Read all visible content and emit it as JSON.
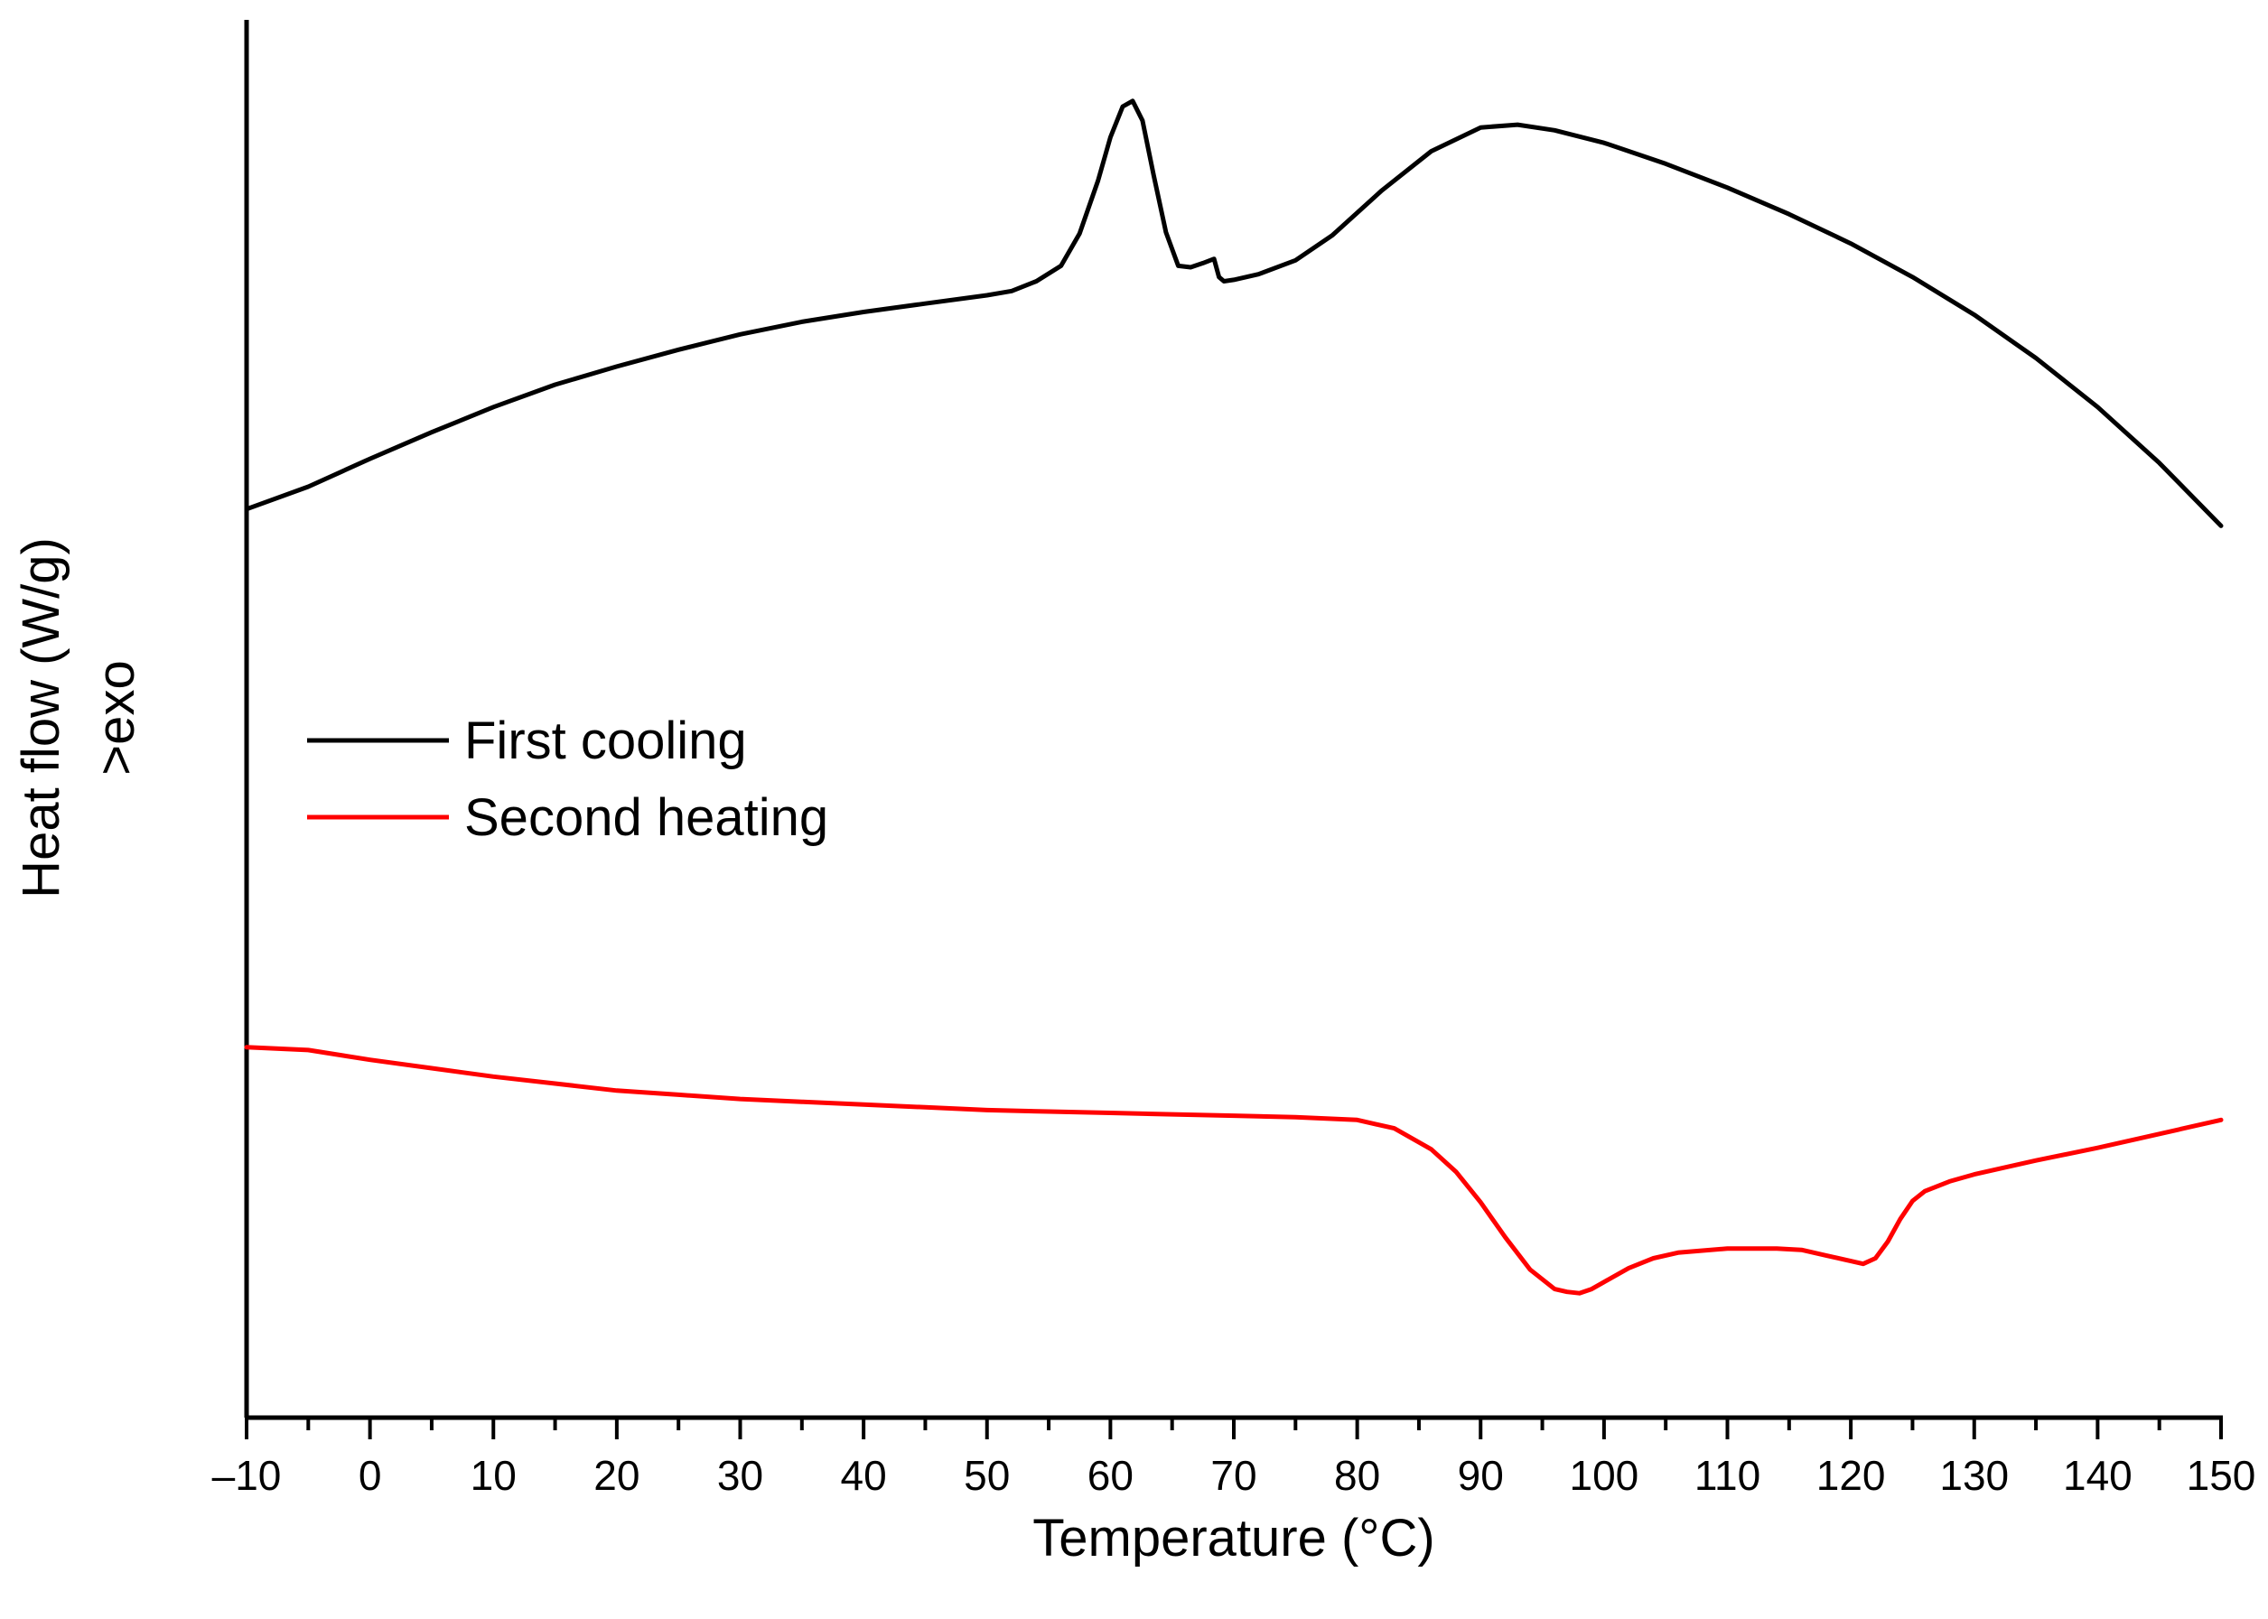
{
  "chart_data": {
    "type": "line",
    "title": "",
    "xlabel": "Temperature (°C)",
    "ylabel": "Heat flow (W/g)",
    "ylabel_note": ">exo",
    "xlim": [
      -10,
      150
    ],
    "ylim": [
      0,
      100
    ],
    "x_ticks": [
      -10,
      0,
      10,
      20,
      30,
      40,
      50,
      60,
      70,
      80,
      90,
      100,
      110,
      120,
      130,
      140,
      150
    ],
    "x_tick_labels": [
      "–10",
      "0",
      "10",
      "20",
      "30",
      "40",
      "50",
      "60",
      "70",
      "80",
      "90",
      "100",
      "110",
      "120",
      "130",
      "140",
      "150"
    ],
    "y_ticks_visible": false,
    "grid": false,
    "legend_position": "center-left",
    "series": [
      {
        "name": "First cooling",
        "color": "#000000",
        "x": [
          -10,
          -5,
          0,
          5,
          10,
          15,
          20,
          25,
          30,
          35,
          40,
          45,
          50,
          52,
          54,
          56,
          57.5,
          59,
          60,
          61,
          61.8,
          62.6,
          63.5,
          64.5,
          65.5,
          66.5,
          67.5,
          68.4,
          68.8,
          69.2,
          70,
          72,
          75,
          78,
          82,
          86,
          90,
          93,
          96,
          100,
          105,
          110,
          115,
          120,
          125,
          130,
          135,
          140,
          145,
          150
        ],
        "y": [
          65.0,
          66.6,
          68.6,
          70.5,
          72.3,
          73.9,
          75.2,
          76.4,
          77.5,
          78.4,
          79.1,
          79.7,
          80.3,
          80.6,
          81.3,
          82.4,
          84.7,
          88.5,
          91.6,
          93.8,
          94.2,
          92.8,
          88.9,
          84.8,
          82.4,
          82.3,
          82.6,
          82.9,
          81.6,
          81.3,
          81.4,
          81.8,
          82.8,
          84.6,
          87.8,
          90.6,
          92.3,
          92.5,
          92.1,
          91.2,
          89.7,
          88.0,
          86.1,
          84.0,
          81.6,
          78.9,
          75.8,
          72.3,
          68.3,
          63.8
        ]
      },
      {
        "name": "Second heating",
        "color": "#ff0000",
        "x": [
          -10,
          -5,
          0,
          5,
          10,
          15,
          20,
          25,
          30,
          35,
          40,
          45,
          50,
          55,
          60,
          65,
          70,
          75,
          80,
          83,
          86,
          88,
          90,
          92,
          94,
          96,
          97,
          98,
          99,
          100,
          102,
          104,
          106,
          110,
          114,
          116,
          118,
          120,
          121,
          122,
          123,
          124,
          125,
          126,
          128,
          130,
          135,
          140,
          145,
          150
        ],
        "y": [
          26.5,
          26.3,
          25.6,
          25.0,
          24.4,
          23.9,
          23.4,
          23.1,
          22.8,
          22.6,
          22.4,
          22.2,
          22.0,
          21.9,
          21.8,
          21.7,
          21.6,
          21.5,
          21.3,
          20.7,
          19.2,
          17.6,
          15.4,
          12.9,
          10.6,
          9.2,
          9.0,
          8.9,
          9.2,
          9.7,
          10.7,
          11.4,
          11.8,
          12.1,
          12.1,
          12.0,
          11.6,
          11.2,
          11.0,
          11.4,
          12.6,
          14.2,
          15.5,
          16.2,
          16.9,
          17.4,
          18.4,
          19.3,
          20.3,
          21.3
        ]
      }
    ]
  },
  "legend": {
    "items": [
      {
        "label": "First cooling",
        "color": "#000000"
      },
      {
        "label": "Second heating",
        "color": "#ff0000"
      }
    ]
  }
}
